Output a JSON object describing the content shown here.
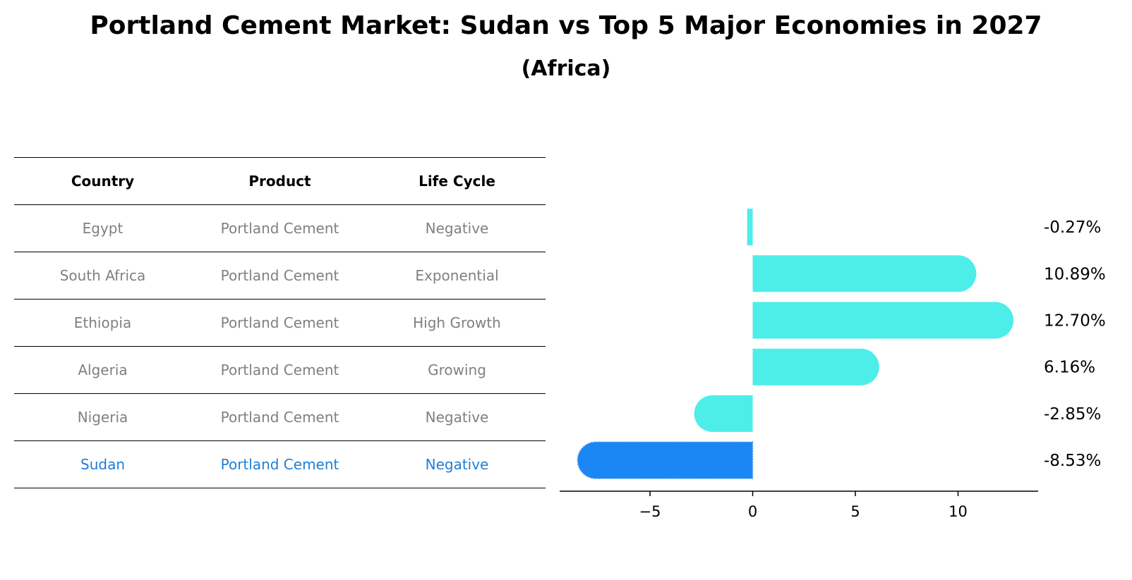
{
  "title": "Portland Cement Market: Sudan vs Top 5 Major Economies in 2027",
  "subtitle": "(Africa)",
  "table": {
    "headers": [
      "Country",
      "Product",
      "Life Cycle"
    ],
    "rows": [
      [
        "Egypt",
        "Portland Cement",
        "Negative"
      ],
      [
        "South Africa",
        "Portland Cement",
        "Exponential"
      ],
      [
        "Ethiopia",
        "Portland Cement",
        "High Growth"
      ],
      [
        "Algeria",
        "Portland Cement",
        "Growing"
      ],
      [
        "Nigeria",
        "Portland Cement",
        "Negative"
      ],
      [
        "Sudan",
        "Portland Cement",
        "Negative"
      ]
    ],
    "highlight_row": 5
  },
  "chart_data": {
    "type": "bar",
    "orientation": "horizontal",
    "categories": [
      "Egypt",
      "South Africa",
      "Ethiopia",
      "Algeria",
      "Nigeria",
      "Sudan"
    ],
    "values": [
      -0.27,
      10.89,
      12.7,
      6.16,
      -2.85,
      -8.53
    ],
    "value_labels": [
      "-0.27%",
      "10.89%",
      "12.70%",
      "6.16%",
      "-2.85%",
      "-8.53%"
    ],
    "xticks": [
      -5,
      0,
      5,
      10
    ],
    "xtick_labels": [
      "−5",
      "0",
      "5",
      "10"
    ],
    "xlim": [
      -9.4,
      13.9
    ],
    "colors": {
      "default": "#4dede9",
      "highlight": "#1a87f4"
    },
    "highlight_index": 5
  }
}
